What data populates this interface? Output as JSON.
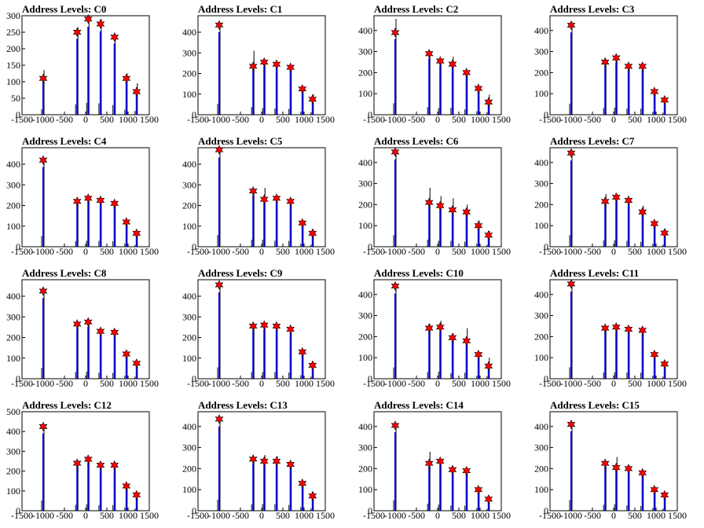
{
  "chart_data": [
    {
      "type": "bar",
      "title": "Address Levels: C0",
      "xlim": [
        -1500,
        1500
      ],
      "ylim": [
        0,
        300
      ],
      "yticks": [
        0,
        50,
        100,
        150,
        200,
        250,
        300
      ],
      "xticks": [
        -1500,
        -1000,
        -500,
        0,
        500,
        1000,
        1500
      ],
      "x": [
        -1000,
        -200,
        60,
        350,
        680,
        960,
        1200
      ],
      "peak_markers": [
        110,
        250,
        290,
        275,
        235,
        110,
        70
      ],
      "hist_max": [
        135,
        265,
        300,
        290,
        245,
        125,
        95
      ]
    },
    {
      "type": "bar",
      "title": "Address Levels: C1",
      "xlim": [
        -1500,
        1500
      ],
      "ylim": [
        0,
        480
      ],
      "yticks": [
        0,
        100,
        200,
        300,
        400
      ],
      "xticks": [
        -1500,
        -1000,
        -500,
        0,
        500,
        1000,
        1500
      ],
      "x": [
        -1000,
        -200,
        60,
        350,
        680,
        960,
        1200
      ],
      "peak_markers": [
        435,
        235,
        255,
        245,
        230,
        125,
        75
      ],
      "hist_max": [
        445,
        310,
        265,
        255,
        235,
        130,
        100
      ]
    },
    {
      "type": "bar",
      "title": "Address Levels: C2",
      "xlim": [
        -1500,
        1500
      ],
      "ylim": [
        0,
        470
      ],
      "yticks": [
        0,
        100,
        200,
        300,
        400
      ],
      "xticks": [
        -1500,
        -1000,
        -500,
        0,
        500,
        1000,
        1500
      ],
      "x": [
        -1000,
        -200,
        60,
        350,
        680,
        960,
        1200
      ],
      "peak_markers": [
        390,
        290,
        255,
        240,
        200,
        125,
        60
      ],
      "hist_max": [
        455,
        295,
        260,
        275,
        210,
        135,
        95
      ]
    },
    {
      "type": "bar",
      "title": "Address Levels: C3",
      "xlim": [
        -1500,
        1500
      ],
      "ylim": [
        0,
        470
      ],
      "yticks": [
        0,
        100,
        200,
        300,
        400
      ],
      "xticks": [
        -1500,
        -1000,
        -500,
        0,
        500,
        1000,
        1500
      ],
      "x": [
        -1000,
        -200,
        60,
        350,
        680,
        960,
        1200
      ],
      "peak_markers": [
        425,
        250,
        270,
        230,
        230,
        110,
        70
      ],
      "hist_max": [
        440,
        260,
        280,
        240,
        240,
        120,
        80
      ]
    },
    {
      "type": "bar",
      "title": "Address Levels: C4",
      "xlim": [
        -1500,
        1500
      ],
      "ylim": [
        0,
        480
      ],
      "yticks": [
        0,
        100,
        200,
        300,
        400
      ],
      "xticks": [
        -1500,
        -1000,
        -500,
        0,
        500,
        1000,
        1500
      ],
      "x": [
        -1000,
        -200,
        60,
        350,
        680,
        960,
        1200
      ],
      "peak_markers": [
        420,
        220,
        235,
        225,
        210,
        120,
        65
      ],
      "hist_max": [
        430,
        230,
        245,
        235,
        220,
        130,
        75
      ]
    },
    {
      "type": "bar",
      "title": "Address Levels: C5",
      "xlim": [
        -1500,
        1500
      ],
      "ylim": [
        0,
        480
      ],
      "yticks": [
        0,
        100,
        200,
        300,
        400
      ],
      "xticks": [
        -1500,
        -1000,
        -500,
        0,
        500,
        1000,
        1500
      ],
      "x": [
        -1000,
        -200,
        60,
        350,
        680,
        960,
        1200
      ],
      "peak_markers": [
        470,
        270,
        230,
        235,
        220,
        115,
        65
      ],
      "hist_max": [
        475,
        280,
        285,
        245,
        235,
        125,
        85
      ]
    },
    {
      "type": "bar",
      "title": "Address Levels: C6",
      "xlim": [
        -1500,
        1500
      ],
      "ylim": [
        0,
        470
      ],
      "yticks": [
        0,
        100,
        200,
        300,
        400
      ],
      "xticks": [
        -1500,
        -1000,
        -500,
        0,
        500,
        1000,
        1500
      ],
      "x": [
        -1000,
        -200,
        60,
        350,
        680,
        960,
        1200
      ],
      "peak_markers": [
        450,
        210,
        195,
        175,
        165,
        100,
        55
      ],
      "hist_max": [
        455,
        280,
        240,
        230,
        200,
        125,
        75
      ]
    },
    {
      "type": "bar",
      "title": "Address Levels: C7",
      "xlim": [
        -1500,
        1500
      ],
      "ylim": [
        0,
        470
      ],
      "yticks": [
        0,
        100,
        200,
        300,
        400
      ],
      "xticks": [
        -1500,
        -1000,
        -500,
        0,
        500,
        1000,
        1500
      ],
      "x": [
        -1000,
        -200,
        60,
        350,
        680,
        960,
        1200
      ],
      "peak_markers": [
        445,
        215,
        235,
        220,
        165,
        110,
        65
      ],
      "hist_max": [
        455,
        250,
        250,
        230,
        195,
        120,
        85
      ]
    },
    {
      "type": "bar",
      "title": "Address Levels: C8",
      "xlim": [
        -1500,
        1500
      ],
      "ylim": [
        0,
        480
      ],
      "yticks": [
        0,
        100,
        200,
        300,
        400
      ],
      "xticks": [
        -1500,
        -1000,
        -500,
        0,
        500,
        1000,
        1500
      ],
      "x": [
        -1000,
        -200,
        60,
        350,
        680,
        960,
        1200
      ],
      "peak_markers": [
        425,
        265,
        275,
        230,
        225,
        120,
        75
      ],
      "hist_max": [
        435,
        275,
        285,
        240,
        235,
        130,
        85
      ]
    },
    {
      "type": "bar",
      "title": "Address Levels: C9",
      "xlim": [
        -1500,
        1500
      ],
      "ylim": [
        0,
        480
      ],
      "yticks": [
        0,
        100,
        200,
        300,
        400
      ],
      "xticks": [
        -1500,
        -1000,
        -500,
        0,
        500,
        1000,
        1500
      ],
      "x": [
        -1000,
        -200,
        60,
        350,
        680,
        960,
        1200
      ],
      "peak_markers": [
        455,
        255,
        260,
        255,
        240,
        130,
        65
      ],
      "hist_max": [
        460,
        265,
        270,
        265,
        250,
        140,
        85
      ]
    },
    {
      "type": "bar",
      "title": "Address Levels: C10",
      "xlim": [
        -1500,
        1500
      ],
      "ylim": [
        0,
        470
      ],
      "yticks": [
        0,
        100,
        200,
        300,
        400
      ],
      "xticks": [
        -1500,
        -1000,
        -500,
        0,
        500,
        1000,
        1500
      ],
      "x": [
        -1000,
        -200,
        60,
        350,
        680,
        960,
        1200
      ],
      "peak_markers": [
        440,
        240,
        245,
        195,
        180,
        115,
        60
      ],
      "hist_max": [
        445,
        260,
        275,
        215,
        240,
        125,
        100
      ]
    },
    {
      "type": "bar",
      "title": "Address Levels: C11",
      "xlim": [
        -1500,
        1500
      ],
      "ylim": [
        0,
        470
      ],
      "yticks": [
        0,
        100,
        200,
        300,
        400
      ],
      "xticks": [
        -1500,
        -1000,
        -500,
        0,
        500,
        1000,
        1500
      ],
      "x": [
        -1000,
        -200,
        60,
        350,
        680,
        960,
        1200
      ],
      "peak_markers": [
        450,
        240,
        245,
        235,
        230,
        115,
        70
      ],
      "hist_max": [
        455,
        250,
        255,
        245,
        240,
        125,
        80
      ]
    },
    {
      "type": "bar",
      "title": "Address Levels: C12",
      "xlim": [
        -1500,
        1500
      ],
      "ylim": [
        0,
        500
      ],
      "yticks": [
        0,
        100,
        200,
        300,
        400,
        500
      ],
      "xticks": [
        -1500,
        -1000,
        -500,
        0,
        500,
        1000,
        1500
      ],
      "x": [
        -1000,
        -200,
        60,
        350,
        680,
        960,
        1200
      ],
      "peak_markers": [
        425,
        240,
        260,
        230,
        230,
        125,
        80
      ],
      "hist_max": [
        435,
        250,
        270,
        240,
        240,
        135,
        90
      ]
    },
    {
      "type": "bar",
      "title": "Address Levels: C13",
      "xlim": [
        -1500,
        1500
      ],
      "ylim": [
        0,
        470
      ],
      "yticks": [
        0,
        100,
        200,
        300,
        400
      ],
      "xticks": [
        -1500,
        -1000,
        -500,
        0,
        500,
        1000,
        1500
      ],
      "x": [
        -1000,
        -200,
        60,
        350,
        680,
        960,
        1200
      ],
      "peak_markers": [
        435,
        245,
        235,
        235,
        220,
        130,
        70
      ],
      "hist_max": [
        440,
        255,
        265,
        260,
        230,
        140,
        90
      ]
    },
    {
      "type": "bar",
      "title": "Address Levels: C14",
      "xlim": [
        -1500,
        1500
      ],
      "ylim": [
        0,
        470
      ],
      "yticks": [
        0,
        100,
        200,
        300,
        400
      ],
      "xticks": [
        -1500,
        -1000,
        -500,
        0,
        500,
        1000,
        1500
      ],
      "x": [
        -1000,
        -200,
        60,
        350,
        680,
        960,
        1200
      ],
      "peak_markers": [
        405,
        225,
        235,
        195,
        190,
        100,
        55
      ],
      "hist_max": [
        415,
        280,
        245,
        210,
        200,
        110,
        70
      ]
    },
    {
      "type": "bar",
      "title": "Address Levels: C15",
      "xlim": [
        -1500,
        1500
      ],
      "ylim": [
        0,
        470
      ],
      "yticks": [
        0,
        100,
        200,
        300,
        400
      ],
      "xticks": [
        -1500,
        -1000,
        -500,
        0,
        500,
        1000,
        1500
      ],
      "x": [
        -1000,
        -200,
        60,
        350,
        680,
        960,
        1200
      ],
      "peak_markers": [
        410,
        225,
        205,
        200,
        180,
        100,
        75
      ],
      "hist_max": [
        420,
        235,
        255,
        215,
        190,
        110,
        85
      ]
    }
  ],
  "colors": {
    "bar": "#0000dd",
    "hist": "#000000",
    "marker": "#ff0000",
    "axis": "#000000"
  }
}
